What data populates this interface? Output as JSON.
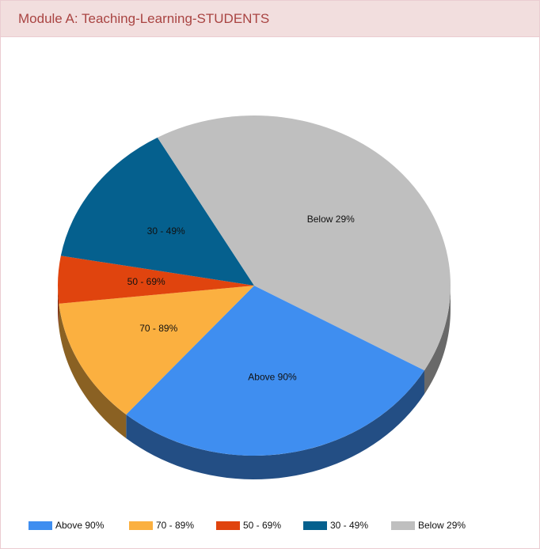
{
  "header": {
    "title": "Module A: Teaching-Learning-STUDENTS"
  },
  "chart_data": {
    "type": "pie",
    "categories": [
      "Above 90%",
      "70 - 89%",
      "50 - 69%",
      "30 - 49%",
      "Below 29%"
    ],
    "values": [
      28,
      12,
      4.5,
      14,
      41.5
    ],
    "colors": [
      "#3f8ef0",
      "#fbb040",
      "#e0440e",
      "#05608e",
      "#bfbfbf"
    ],
    "legend": "bottom"
  }
}
